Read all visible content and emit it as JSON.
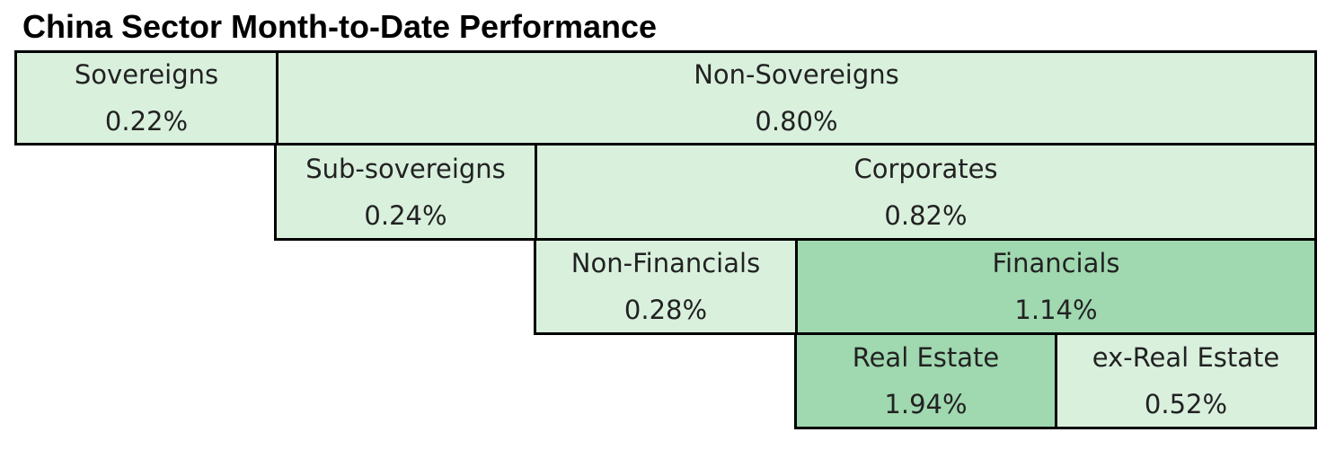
{
  "title": "China Sector Month-to-Date Performance",
  "colors": {
    "light": "#d9f0dd",
    "dark": "#a0d8b0",
    "border": "#000000"
  },
  "chart_data": {
    "type": "table",
    "title": "China Sector Month-to-Date Performance",
    "cells": [
      {
        "id": "sovereigns",
        "label": "Sovereigns",
        "value": "0.22%",
        "fill": "#d9f0dd"
      },
      {
        "id": "non-sovereigns",
        "label": "Non-Sovereigns",
        "value": "0.80%",
        "fill": "#d9f0dd"
      },
      {
        "id": "sub-sovereigns",
        "label": "Sub-sovereigns",
        "value": "0.24%",
        "fill": "#d9f0dd"
      },
      {
        "id": "corporates",
        "label": "Corporates",
        "value": "0.82%",
        "fill": "#d9f0dd"
      },
      {
        "id": "non-financials",
        "label": "Non-Financials",
        "value": "0.28%",
        "fill": "#d9f0dd"
      },
      {
        "id": "financials",
        "label": "Financials",
        "value": "1.14%",
        "fill": "#a0d8b0"
      },
      {
        "id": "real-estate",
        "label": "Real Estate",
        "value": "1.94%",
        "fill": "#a0d8b0"
      },
      {
        "id": "ex-real-estate",
        "label": "ex-Real Estate",
        "value": "0.52%",
        "fill": "#d9f0dd"
      }
    ]
  }
}
